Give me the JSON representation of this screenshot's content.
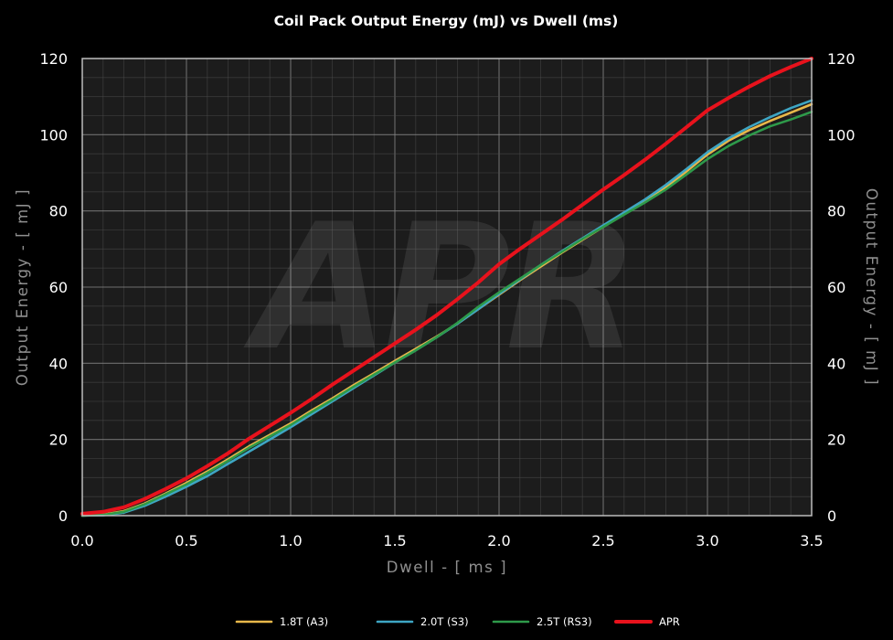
{
  "chart_data": {
    "type": "line",
    "title": "Coil Pack Output Energy (mJ) vs Dwell (ms)",
    "xlabel": "Dwell - [ ms ]",
    "ylabel": "Output Energy - [ mJ ]",
    "ylabel_right": "Output Energy - [ mJ ]",
    "watermark": "APR",
    "xlim": [
      0,
      3.5
    ],
    "ylim": [
      0,
      120
    ],
    "xticks": [
      "0.0",
      "0.5",
      "1.0",
      "1.5",
      "2.0",
      "2.5",
      "3.0",
      "3.5"
    ],
    "yticks": [
      "0",
      "20",
      "40",
      "60",
      "80",
      "100",
      "120"
    ],
    "grid": true,
    "legend_position": "bottom",
    "colors": {
      "background": "#000000",
      "plot_background": "#1c1c1c",
      "grid": "#4d4d4d"
    },
    "series": [
      {
        "name": "1.8T (A3)",
        "color": "#e8b84a",
        "x": [
          0,
          0.1,
          0.2,
          0.3,
          0.4,
          0.5,
          0.6,
          0.7,
          0.8,
          0.9,
          1.0,
          1.1,
          1.2,
          1.3,
          1.4,
          1.5,
          1.6,
          1.7,
          1.8,
          1.9,
          2.0,
          2.1,
          2.2,
          2.3,
          2.4,
          2.5,
          2.6,
          2.7,
          2.8,
          2.9,
          3.0,
          3.1,
          3.2,
          3.3,
          3.4,
          3.5
        ],
        "y": [
          0,
          0.3,
          1.2,
          3.2,
          5.8,
          8.6,
          11.6,
          14.8,
          18.2,
          21.2,
          24.2,
          27.6,
          30.8,
          34.2,
          37.4,
          40.6,
          43.8,
          47.0,
          50.4,
          54.2,
          58.0,
          61.8,
          65.4,
          69.0,
          72.4,
          75.8,
          79.2,
          82.6,
          86.2,
          90.4,
          94.8,
          98.4,
          101.2,
          103.6,
          105.8,
          108.0
        ]
      },
      {
        "name": "2.0T (S3)",
        "color": "#3ea6c4",
        "x": [
          0,
          0.1,
          0.2,
          0.3,
          0.4,
          0.5,
          0.6,
          0.7,
          0.8,
          0.9,
          1.0,
          1.1,
          1.2,
          1.3,
          1.4,
          1.5,
          1.6,
          1.7,
          1.8,
          1.9,
          2.0,
          2.1,
          2.2,
          2.3,
          2.4,
          2.5,
          2.6,
          2.7,
          2.8,
          2.9,
          3.0,
          3.1,
          3.2,
          3.3,
          3.4,
          3.5
        ],
        "y": [
          0,
          0.1,
          0.8,
          2.6,
          5.0,
          7.6,
          10.4,
          13.6,
          16.8,
          20.0,
          23.2,
          26.6,
          30.0,
          33.4,
          36.8,
          40.2,
          43.4,
          46.8,
          50.4,
          54.2,
          58.2,
          62.0,
          65.8,
          69.4,
          72.8,
          76.2,
          79.6,
          83.0,
          86.8,
          91.0,
          95.4,
          99.0,
          102.0,
          104.6,
          107.0,
          109.0
        ]
      },
      {
        "name": "2.5T (RS3)",
        "color": "#2e9a4a",
        "x": [
          0,
          0.1,
          0.2,
          0.3,
          0.4,
          0.5,
          0.6,
          0.7,
          0.8,
          0.9,
          1.0,
          1.1,
          1.2,
          1.3,
          1.4,
          1.5,
          1.6,
          1.7,
          1.8,
          1.9,
          2.0,
          2.1,
          2.2,
          2.3,
          2.4,
          2.5,
          2.6,
          2.7,
          2.8,
          2.9,
          3.0,
          3.1,
          3.2,
          3.3,
          3.4,
          3.5
        ],
        "y": [
          0,
          0.2,
          1.0,
          3.0,
          5.6,
          8.2,
          11.2,
          14.4,
          17.8,
          20.8,
          23.8,
          27.2,
          30.4,
          33.8,
          37.0,
          40.2,
          43.4,
          46.8,
          50.6,
          54.8,
          58.6,
          62.2,
          65.8,
          69.2,
          72.6,
          75.8,
          79.0,
          82.2,
          85.6,
          89.6,
          93.6,
          97.0,
          99.8,
          102.2,
          104.0,
          106.0
        ]
      },
      {
        "name": "APR",
        "color": "#e8121c",
        "x": [
          0,
          0.1,
          0.2,
          0.3,
          0.4,
          0.5,
          0.6,
          0.7,
          0.8,
          0.9,
          1.0,
          1.1,
          1.2,
          1.3,
          1.4,
          1.5,
          1.6,
          1.7,
          1.8,
          1.9,
          2.0,
          2.1,
          2.2,
          2.3,
          2.4,
          2.5,
          2.6,
          2.7,
          2.8,
          2.9,
          3.0,
          3.1,
          3.2,
          3.3,
          3.4,
          3.5
        ],
        "y": [
          0.5,
          1.0,
          2.2,
          4.4,
          7.0,
          9.8,
          13.0,
          16.4,
          20.2,
          23.6,
          27.0,
          30.6,
          34.4,
          38.0,
          41.6,
          45.2,
          48.8,
          52.6,
          56.8,
          61.2,
          66.0,
          70.0,
          73.8,
          77.6,
          81.6,
          85.6,
          89.4,
          93.4,
          97.6,
          102.0,
          106.4,
          109.6,
          112.6,
          115.4,
          117.8,
          120.0
        ]
      }
    ]
  }
}
